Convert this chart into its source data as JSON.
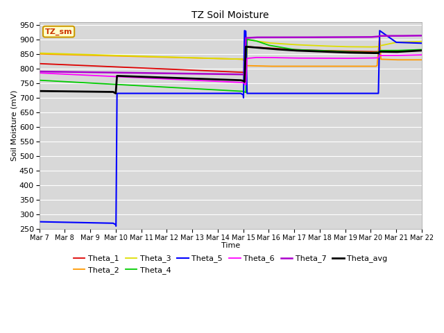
{
  "title": "TZ Soil Moisture",
  "xlabel": "Time",
  "ylabel": "Soil Moisture (mV)",
  "ylim": [
    250,
    960
  ],
  "yticks": [
    250,
    300,
    350,
    400,
    450,
    500,
    550,
    600,
    650,
    700,
    750,
    800,
    850,
    900,
    950
  ],
  "background_color": "#d8d8d8",
  "legend_label": "TZ_sm",
  "date_labels": [
    "Mar 7",
    "Mar 8",
    "Mar 9",
    "Mar 10",
    "Mar 11",
    "Mar 12",
    "Mar 13",
    "Mar 14",
    "Mar 15",
    "Mar 16",
    "Mar 17",
    "Mar 18",
    "Mar 19",
    "Mar 20",
    "Mar 21",
    "Mar 22"
  ],
  "date_ticks": [
    0,
    1,
    2,
    3,
    4,
    5,
    6,
    7,
    8,
    9,
    10,
    11,
    12,
    13,
    14,
    15
  ],
  "series_colors": {
    "Theta_1": "#dd0000",
    "Theta_2": "#ff9900",
    "Theta_3": "#dddd00",
    "Theta_4": "#00cc00",
    "Theta_5": "#0000ff",
    "Theta_6": "#ff00ff",
    "Theta_7": "#aa00cc",
    "Theta_avg": "#000000"
  }
}
